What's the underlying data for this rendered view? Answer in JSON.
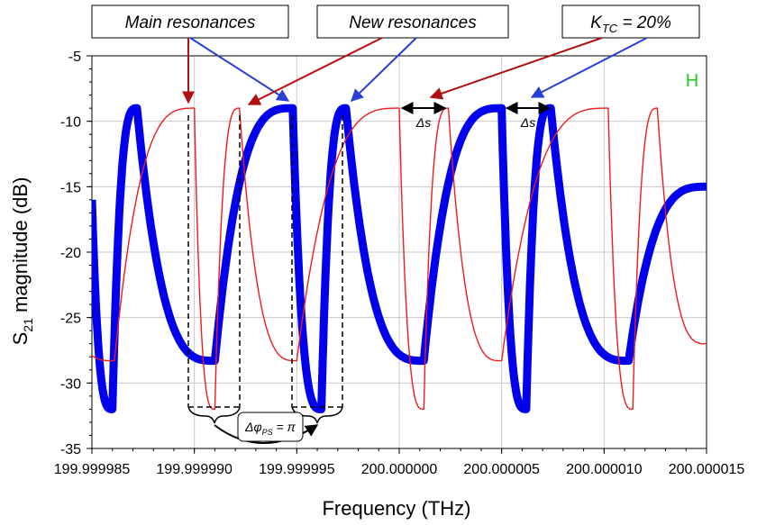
{
  "chart_data": {
    "type": "line",
    "xlabel": "Frequency (THz)",
    "ylabel_main": "S",
    "ylabel_sub": "21",
    "ylabel_rest": " magnitude (dB)",
    "xlim": [
      199.999985,
      200.000015
    ],
    "ylim": [
      -35,
      -5
    ],
    "xticks": [
      199.999985,
      199.99999,
      199.999995,
      200.0,
      200.000005,
      200.00001,
      200.000015
    ],
    "xtick_labels": [
      "199.999985",
      "199.999990",
      "199.999995",
      "200.000000",
      "200.000005",
      "200.000010",
      "200.000015"
    ],
    "yticks": [
      -5,
      -10,
      -15,
      -20,
      -25,
      -30,
      -35
    ],
    "ytick_labels": [
      "-5",
      "-10",
      "-15",
      "-20",
      "-25",
      "-30",
      "-35"
    ],
    "grid": true,
    "series": [
      {
        "color": "#0000ee",
        "style": "thick",
        "peak_db": -9,
        "dip_db": -32,
        "trough_db": -28.3,
        "resonances": [
          199.999987,
          199.999995,
          199.9999975,
          200.000005,
          200.0000075
        ],
        "dips": [
          199.999986,
          199.9999962,
          200.0000014
        ],
        "x": [
          199.999985,
          199.999986,
          199.9999872,
          199.999991,
          199.9999948,
          199.9999962,
          199.9999974,
          200.0000012,
          200.000005,
          200.0000062,
          200.0000074,
          200.0000112,
          200.000015
        ],
        "y": [
          -16,
          -32,
          -9,
          -28.3,
          -9,
          -32,
          -9,
          -28.3,
          -9,
          -32,
          -9,
          -28.3,
          -15
        ]
      },
      {
        "color": "#ee1c1c",
        "style": "thin",
        "peak_db": -9,
        "dip_db": -32,
        "trough_db": -28.3,
        "x": [
          199.999985,
          199.9999861,
          199.99999,
          199.999991,
          199.9999922,
          199.999995,
          200.0,
          200.0000012,
          200.0000024,
          200.000005,
          200.0000102,
          200.0000114,
          200.0000126,
          200.000015
        ],
        "y": [
          -27.9,
          -28.3,
          -9,
          -32,
          -9,
          -28.3,
          -9,
          -32,
          -9,
          -28.3,
          -9,
          -32,
          -9,
          -27
        ]
      }
    ],
    "annotations": {
      "main_resonances": "Main resonances",
      "new_resonances": "New resonances",
      "ktc_prefix": "K",
      "ktc_sub": "TC",
      "ktc_rest": " = 20%",
      "delta_s": "Δs",
      "phase_prefix": "Δφ",
      "phase_sub": "PS",
      "phase_rest": " = π",
      "corner": "H"
    }
  }
}
